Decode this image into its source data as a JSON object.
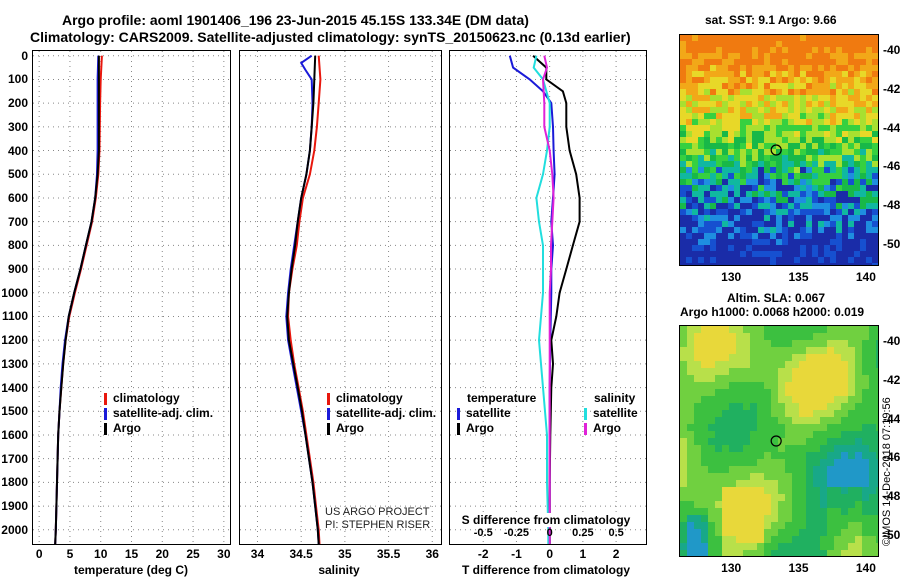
{
  "header": {
    "line1": "Argo profile: aoml 1901406_196 23-Jun-2015 45.15S 133.34E (DM data)",
    "line2": "Climatology: CARS2009. Satellite-adjusted climatology: synTS_20150623.nc (0.13d earlier)"
  },
  "colors": {
    "climatology": "#e8170d",
    "satellite": "#1a1ad8",
    "argo": "#000000",
    "sat_salinity": "#21dede",
    "argo_salinity": "#e022d8"
  },
  "depth_axis": {
    "ticks": [
      "0",
      "100",
      "200",
      "300",
      "400",
      "500",
      "600",
      "700",
      "800",
      "900",
      "1000",
      "1100",
      "1200",
      "1300",
      "1400",
      "1500",
      "1600",
      "1700",
      "1800",
      "1900",
      "2000"
    ]
  },
  "temperature_panel": {
    "xticks": [
      "0",
      "5",
      "10",
      "15",
      "20",
      "25",
      "30"
    ],
    "xlabel": "temperature (deg C)",
    "legend": [
      "climatology",
      "satellite-adj. clim.",
      "Argo"
    ]
  },
  "salinity_panel": {
    "xticks": [
      "34",
      "34.5",
      "35",
      "35.5",
      "36"
    ],
    "xlabel": "salinity",
    "legend": [
      "climatology",
      "satellite-adj. clim.",
      "Argo"
    ],
    "credit1": "US ARGO PROJECT",
    "credit2": "PI: STEPHEN RISER"
  },
  "diff_panel": {
    "xticks": [
      "-2",
      "-1",
      "0",
      "1",
      "2"
    ],
    "xlabel": "T difference from climatology",
    "s_label": "S difference from climatology",
    "s_ticks": [
      "-0.5",
      "-0.25",
      "0",
      "0.25",
      "0.5"
    ],
    "legend_t_title": "temperature",
    "legend_s_title": "salinity",
    "legend_t": [
      "satellite",
      "Argo"
    ],
    "legend_s": [
      "satellite",
      "Argo"
    ]
  },
  "sst_map": {
    "title": "sat. SST: 9.1 Argo: 9.66",
    "lat_ticks": [
      "-40",
      "-42",
      "-44",
      "-46",
      "-48",
      "-50"
    ],
    "lon_ticks": [
      "130",
      "135",
      "140"
    ]
  },
  "sla_map": {
    "title1": "Altim. SLA: 0.067",
    "title2": "Argo h1000: 0.0068 h2000: 0.019",
    "lat_ticks": [
      "-40",
      "-42",
      "-44",
      "-46",
      "-48",
      "-50"
    ],
    "lon_ticks": [
      "130",
      "135",
      "140"
    ]
  },
  "footer": {
    "stamp": "©IMOS 14-Dec-2018 07:19:56"
  },
  "chart_data": [
    {
      "type": "line",
      "xlabel": "temperature (deg C)",
      "ylabel": "",
      "xlim": [
        -1,
        31
      ],
      "ylim": [
        2060,
        -20
      ],
      "series": [
        {
          "name": "climatology",
          "y": [
            0,
            100,
            200,
            400,
            500,
            600,
            700,
            800,
            900,
            1000,
            1100,
            1200,
            1300,
            1400,
            1500,
            1600,
            1700,
            1800,
            1900,
            2000,
            2060
          ],
          "x": [
            10.2,
            10.0,
            9.9,
            9.8,
            9.6,
            9.2,
            8.6,
            7.7,
            6.8,
            5.8,
            4.9,
            4.3,
            3.9,
            3.6,
            3.3,
            3.1,
            3.0,
            2.9,
            2.8,
            2.7,
            2.6
          ]
        },
        {
          "name": "satellite-adj. clim.",
          "y": [
            0,
            100,
            200,
            400,
            500,
            600,
            700,
            800,
            900,
            1000,
            1100,
            1200,
            1300,
            1400,
            1500,
            1600,
            1700,
            1800,
            1900,
            2000,
            2060
          ],
          "x": [
            9.6,
            9.5,
            9.5,
            9.5,
            9.4,
            9.1,
            8.5,
            7.6,
            6.7,
            5.7,
            4.8,
            4.2,
            3.8,
            3.5,
            3.3,
            3.1,
            3.0,
            2.9,
            2.8,
            2.7,
            2.6
          ]
        },
        {
          "name": "Argo",
          "y": [
            0,
            100,
            200,
            400,
            500,
            600,
            700,
            800,
            900,
            1000,
            1100,
            1200,
            1300,
            1400,
            1500,
            1600,
            1700,
            1800,
            1900,
            2000,
            2060
          ],
          "x": [
            9.7,
            9.7,
            9.7,
            9.7,
            9.5,
            9.1,
            8.5,
            7.6,
            6.7,
            5.7,
            4.8,
            4.3,
            3.9,
            3.6,
            3.3,
            3.1,
            3.0,
            2.9,
            2.8,
            2.7,
            2.6
          ]
        }
      ]
    },
    {
      "type": "line",
      "xlabel": "salinity",
      "ylabel": "",
      "xlim": [
        33.8,
        36.1
      ],
      "ylim": [
        2060,
        -20
      ],
      "series": [
        {
          "name": "climatology",
          "y": [
            0,
            100,
            200,
            300,
            400,
            500,
            600,
            700,
            800,
            900,
            1000,
            1100,
            1200,
            1300,
            1400,
            1500,
            1600,
            1700,
            1800,
            1900,
            2000,
            2060
          ],
          "x": [
            34.7,
            34.72,
            34.7,
            34.68,
            34.65,
            34.6,
            34.52,
            34.48,
            34.45,
            34.4,
            34.36,
            34.35,
            34.38,
            34.42,
            34.47,
            34.52,
            34.56,
            34.6,
            34.64,
            34.67,
            34.7,
            34.71
          ]
        },
        {
          "name": "satellite-adj. clim.",
          "y": [
            0,
            30,
            60,
            100,
            200,
            300,
            400,
            500,
            600,
            700,
            800,
            900,
            1000,
            1100,
            1200,
            1300,
            1400,
            1500,
            1600,
            1700,
            1800,
            1900,
            2000,
            2060
          ],
          "x": [
            34.62,
            34.5,
            34.55,
            34.62,
            34.63,
            34.62,
            34.6,
            34.56,
            34.5,
            34.46,
            34.42,
            34.38,
            34.35,
            34.33,
            34.35,
            34.4,
            34.45,
            34.5,
            34.55,
            34.59,
            34.63,
            34.66,
            34.69,
            34.7
          ]
        },
        {
          "name": "Argo",
          "y": [
            0,
            100,
            200,
            300,
            400,
            500,
            600,
            700,
            800,
            900,
            1000,
            1100,
            1200,
            1300,
            1400,
            1500,
            1600,
            1700,
            1800,
            1900,
            2000,
            2060
          ],
          "x": [
            34.66,
            34.65,
            34.64,
            34.62,
            34.6,
            34.56,
            34.5,
            34.46,
            34.43,
            34.39,
            34.36,
            34.34,
            34.36,
            34.41,
            34.46,
            34.51,
            34.55,
            34.59,
            34.63,
            34.66,
            34.69,
            34.7
          ]
        }
      ]
    },
    {
      "type": "line",
      "xlabel": "T difference from climatology",
      "ylabel": "",
      "xlim": [
        -3.0,
        2.9
      ],
      "ylim": [
        2060,
        -20
      ],
      "s_xlim": [
        -0.75,
        0.725
      ],
      "series": [
        {
          "name": "temperature satellite",
          "axis": "T",
          "y": [
            0,
            50,
            100,
            150,
            200,
            300,
            400,
            500,
            600,
            700,
            800,
            900,
            1000,
            1200,
            1400,
            1600,
            1800,
            2000,
            2060
          ],
          "x": [
            -1.2,
            -1.1,
            -0.6,
            -0.2,
            0.05,
            0.1,
            0.12,
            0.15,
            0.1,
            0.05,
            0.1,
            0.05,
            0.05,
            0.02,
            0.0,
            0.0,
            0.0,
            0.0,
            0.0
          ]
        },
        {
          "name": "temperature Argo",
          "axis": "T",
          "y": [
            0,
            50,
            100,
            150,
            200,
            300,
            400,
            500,
            600,
            700,
            800,
            900,
            1000,
            1100,
            1200,
            1300,
            1400,
            1600,
            1800,
            2000,
            2060
          ],
          "x": [
            -0.5,
            -0.1,
            -0.1,
            0.4,
            0.5,
            0.5,
            0.6,
            0.8,
            0.9,
            0.9,
            0.7,
            0.5,
            0.3,
            0.2,
            0.05,
            0.1,
            0.05,
            0.02,
            0.0,
            0.0,
            0.0
          ]
        },
        {
          "name": "salinity satellite",
          "axis": "S",
          "y": [
            0,
            50,
            100,
            200,
            300,
            400,
            500,
            600,
            700,
            800,
            900,
            1000,
            1200,
            1400,
            1600,
            1800,
            2000,
            2060
          ],
          "x": [
            -0.1,
            -0.12,
            -0.05,
            0.0,
            0.0,
            -0.02,
            -0.05,
            -0.1,
            -0.08,
            -0.05,
            -0.05,
            -0.05,
            -0.08,
            -0.05,
            -0.02,
            -0.02,
            -0.01,
            -0.01
          ]
        },
        {
          "name": "salinity Argo",
          "axis": "S",
          "y": [
            0,
            50,
            100,
            200,
            300,
            400,
            500,
            600,
            700,
            800,
            900,
            1000,
            1200,
            1400,
            1600,
            1800,
            2000,
            2060
          ],
          "x": [
            -0.04,
            -0.02,
            -0.05,
            -0.04,
            -0.04,
            0.0,
            0.02,
            0.03,
            0.02,
            0.01,
            0.01,
            0.0,
            0.0,
            0.0,
            0.0,
            0.0,
            0.0,
            0.0
          ]
        }
      ]
    }
  ]
}
